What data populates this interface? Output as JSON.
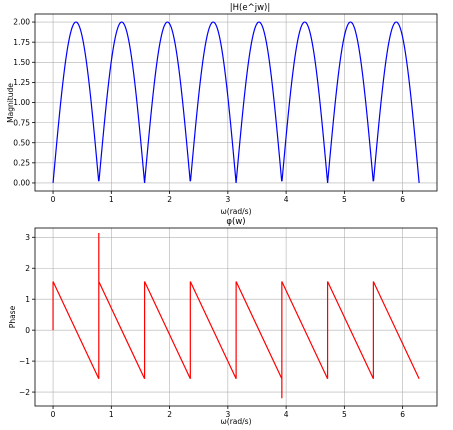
{
  "chart_data": [
    {
      "type": "line",
      "title": "|H(e^jw)|",
      "xlabel": "ω(rad/s)",
      "ylabel": "Magnitude",
      "xlim": [
        -0.31,
        6.59
      ],
      "ylim": [
        -0.1,
        2.1
      ],
      "xticks": [
        "0",
        "1",
        "2",
        "3",
        "4",
        "5",
        "6"
      ],
      "yticks": [
        "0.00",
        "0.25",
        "0.50",
        "0.75",
        "1.00",
        "1.25",
        "1.50",
        "1.75",
        "2.00"
      ],
      "grid": true,
      "function": "2*|sin(4*w)|",
      "x_range": [
        0,
        6.2832
      ],
      "series": [
        {
          "color": "#0000ff",
          "zeros_x": [
            0,
            0.785,
            1.571,
            2.356,
            3.142,
            3.927,
            4.712,
            5.498,
            6.283
          ],
          "peaks_x": [
            0.393,
            1.178,
            1.963,
            2.749,
            3.534,
            4.32,
            5.105,
            5.89
          ],
          "peak_value": 2.0
        }
      ]
    },
    {
      "type": "line",
      "title": "φ(w)",
      "xlabel": "ω(rad/s)",
      "ylabel": "Phase",
      "xlim": [
        -0.31,
        6.59
      ],
      "ylim": [
        -2.45,
        3.3
      ],
      "xticks": [
        "0",
        "1",
        "2",
        "3",
        "4",
        "5",
        "6"
      ],
      "yticks": [
        "−2",
        "−1",
        "0",
        "1",
        "2",
        "3"
      ],
      "grid": true,
      "series": [
        {
          "color": "#ff0000",
          "x": [
            0,
            0,
            0.785,
            0.785,
            0.785,
            0.785,
            1.571,
            1.571,
            2.356,
            2.356,
            3.142,
            3.142,
            3.927,
            3.927,
            3.927,
            4.712,
            4.712,
            5.498,
            5.498,
            6.283
          ],
          "y": [
            0,
            1.571,
            -1.571,
            3.14,
            1.571,
            1.571,
            -1.571,
            1.571,
            -1.571,
            1.571,
            -1.571,
            1.571,
            -1.571,
            -2.2,
            1.571,
            -1.571,
            1.571,
            -1.571,
            1.571,
            -1.571
          ]
        }
      ]
    }
  ]
}
